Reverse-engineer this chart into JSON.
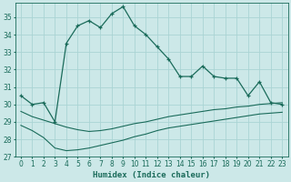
{
  "xlabel": "Humidex (Indice chaleur)",
  "background_color": "#cce8e8",
  "grid_color": "#aad4d4",
  "line_color": "#1a6b5a",
  "xlim": [
    -0.5,
    23.5
  ],
  "ylim": [
    27,
    35.8
  ],
  "yticks": [
    27,
    28,
    29,
    30,
    31,
    32,
    33,
    34,
    35
  ],
  "xticks": [
    0,
    1,
    2,
    3,
    4,
    5,
    6,
    7,
    8,
    9,
    10,
    11,
    12,
    13,
    14,
    15,
    16,
    17,
    18,
    19,
    20,
    21,
    22,
    23
  ],
  "main_line_x": [
    0,
    1,
    2,
    3,
    4,
    5,
    6,
    7,
    8,
    9,
    10,
    11,
    12,
    13,
    14,
    15,
    16,
    17,
    18,
    19,
    20,
    21,
    22,
    23
  ],
  "main_line_y": [
    30.5,
    30.0,
    30.1,
    29.0,
    33.5,
    34.5,
    34.8,
    34.4,
    35.2,
    35.6,
    34.5,
    34.0,
    33.3,
    32.6,
    31.6,
    31.6,
    32.2,
    31.6,
    31.5,
    31.5,
    30.5,
    31.3,
    30.1,
    30.0
  ],
  "line2_x": [
    0,
    1,
    2,
    3,
    4,
    5,
    6,
    7,
    8,
    9,
    10,
    11,
    12,
    13,
    14,
    15,
    16,
    17,
    18,
    19,
    20,
    21,
    22,
    23
  ],
  "line2_y": [
    29.6,
    29.3,
    29.1,
    28.9,
    28.7,
    28.55,
    28.45,
    28.5,
    28.6,
    28.75,
    28.9,
    29.0,
    29.15,
    29.3,
    29.4,
    29.5,
    29.6,
    29.7,
    29.75,
    29.85,
    29.9,
    30.0,
    30.05,
    30.1
  ],
  "line3_x": [
    0,
    1,
    2,
    3,
    4,
    5,
    6,
    7,
    8,
    9,
    10,
    11,
    12,
    13,
    14,
    15,
    16,
    17,
    18,
    19,
    20,
    21,
    22,
    23
  ],
  "line3_y": [
    28.8,
    28.5,
    28.1,
    27.5,
    27.35,
    27.4,
    27.5,
    27.65,
    27.8,
    27.95,
    28.15,
    28.3,
    28.5,
    28.65,
    28.75,
    28.85,
    28.95,
    29.05,
    29.15,
    29.25,
    29.35,
    29.45,
    29.5,
    29.55
  ]
}
